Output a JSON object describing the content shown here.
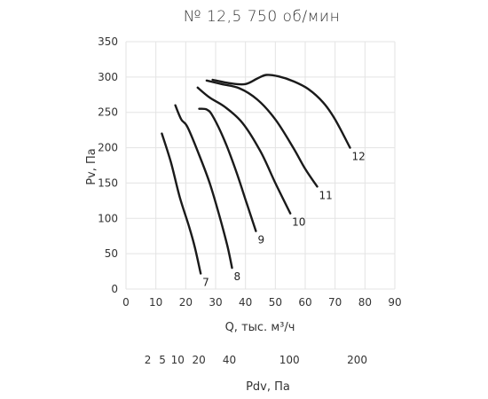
{
  "chart_data": {
    "type": "line",
    "title": "№ 12,5  750 об/мин",
    "xlabel": "Q, тыс. м³/ч",
    "ylabel": "Pv, Па",
    "xlim": [
      0,
      90
    ],
    "ylim": [
      0,
      350
    ],
    "x_ticks": [
      0,
      10,
      20,
      30,
      40,
      50,
      60,
      70,
      80,
      90
    ],
    "y_ticks": [
      0,
      50,
      100,
      150,
      200,
      250,
      300,
      350
    ],
    "grid": true,
    "secondary_axis": {
      "label": "Pdv, Па",
      "ticks": [
        {
          "label": "2",
          "q": 7.3
        },
        {
          "label": "5",
          "q": 12.2
        },
        {
          "label": "10",
          "q": 17.3
        },
        {
          "label": "20",
          "q": 24.4
        },
        {
          "label": "40",
          "q": 34.6
        },
        {
          "label": "100",
          "q": 54.7
        },
        {
          "label": "200",
          "q": 77.4
        }
      ]
    },
    "series": [
      {
        "name": "7",
        "points": [
          [
            12.0,
            220
          ],
          [
            15.0,
            180
          ],
          [
            18.0,
            130
          ],
          [
            21.0,
            90
          ],
          [
            23.0,
            60
          ],
          [
            25.0,
            22
          ]
        ]
      },
      {
        "name": "8",
        "points": [
          [
            16.5,
            260
          ],
          [
            18.5,
            240
          ],
          [
            20.5,
            230
          ],
          [
            24.0,
            195
          ],
          [
            28.0,
            150
          ],
          [
            31.5,
            100
          ],
          [
            34.0,
            60
          ],
          [
            35.5,
            30
          ]
        ]
      },
      {
        "name": "9",
        "points": [
          [
            24.5,
            255
          ],
          [
            27.0,
            254
          ],
          [
            29.0,
            245
          ],
          [
            33.0,
            210
          ],
          [
            37.0,
            165
          ],
          [
            40.5,
            120
          ],
          [
            43.5,
            82
          ]
        ]
      },
      {
        "name": "10",
        "points": [
          [
            24.0,
            285
          ],
          [
            28.0,
            271
          ],
          [
            33.0,
            258
          ],
          [
            39.0,
            235
          ],
          [
            45.0,
            195
          ],
          [
            50.0,
            150
          ],
          [
            55.0,
            107
          ]
        ]
      },
      {
        "name": "11",
        "points": [
          [
            27.0,
            295
          ],
          [
            32.0,
            290
          ],
          [
            38.0,
            284
          ],
          [
            44.0,
            268
          ],
          [
            50.0,
            240
          ],
          [
            56.0,
            200
          ],
          [
            60.0,
            170
          ],
          [
            64.0,
            145
          ]
        ]
      },
      {
        "name": "12",
        "points": [
          [
            29.0,
            296
          ],
          [
            35.0,
            291
          ],
          [
            40.0,
            290
          ],
          [
            44.0,
            298
          ],
          [
            47.0,
            303
          ],
          [
            51.0,
            301
          ],
          [
            56.0,
            294
          ],
          [
            61.0,
            283
          ],
          [
            66.0,
            264
          ],
          [
            70.0,
            240
          ],
          [
            75.0,
            200
          ]
        ]
      }
    ]
  }
}
